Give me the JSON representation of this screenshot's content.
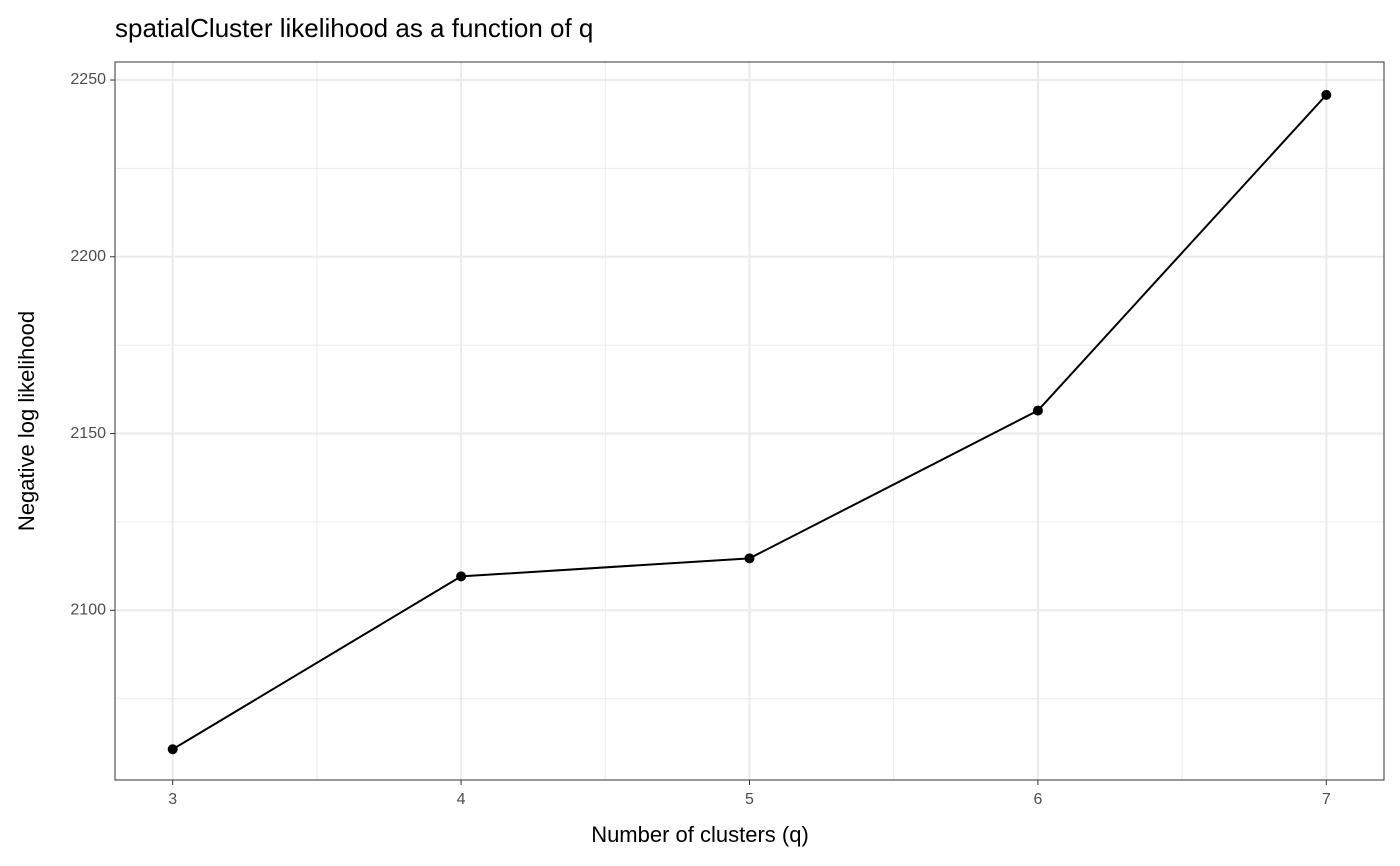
{
  "chart_data": {
    "type": "line",
    "title": "spatialCluster likelihood as a function of q",
    "x_label": "Number of clusters (q)",
    "y_label": "Negative log likelihood",
    "x": [
      3,
      4,
      5,
      6,
      7
    ],
    "series": [
      {
        "color": "#000000",
        "values": [
          2060.7,
          2109.6,
          2114.7,
          2156.5,
          2245.8
        ]
      }
    ],
    "xlim": [
      2.8,
      7.2
    ],
    "xticks": [
      3,
      4,
      5,
      6,
      7
    ],
    "ylim": [
      2052.0,
      2255.1
    ],
    "yticks": [
      2100,
      2150,
      2200,
      2250
    ],
    "grid": true
  }
}
